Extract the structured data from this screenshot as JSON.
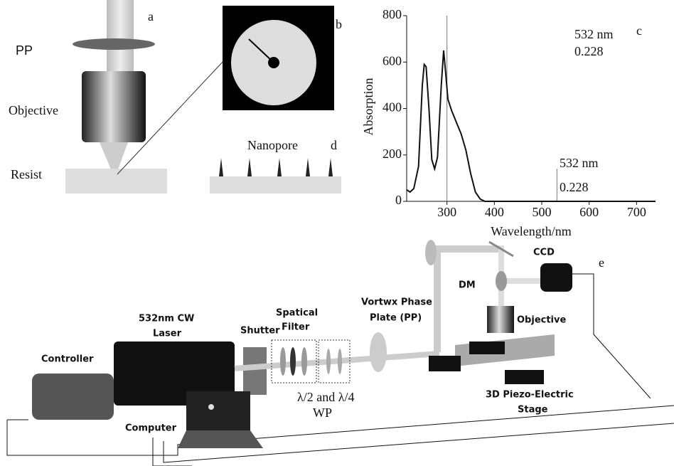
{
  "panel_a": {
    "letter": "a",
    "pp": "PP",
    "objective": "Objective",
    "resist": "Resist"
  },
  "panel_b": {
    "letter": "b"
  },
  "panel_d": {
    "letter": "d",
    "nanopore": "Nanopore"
  },
  "panel_e": {
    "letter": "e",
    "controller": "Controller",
    "laser": [
      "532nm CW",
      "Laser"
    ],
    "shutter": "Shutter",
    "filter": [
      "Spatical",
      "Filter"
    ],
    "phase_plate": [
      "Vortwx Phase",
      "Plate (PP)"
    ],
    "waveplates": [
      "λ/2 and λ/4",
      "WP"
    ],
    "computer": "Computer",
    "dm": "DM",
    "ccd": "CCD",
    "objective": "Objective",
    "stage": [
      "3D Piezo-Electric",
      "Stage"
    ]
  },
  "chart_data": {
    "type": "line",
    "letter": "c",
    "x_label": "Wavelength/nm",
    "y_label": "Absorption",
    "annotation_wavelength": "532 nm",
    "annotation_value": "0.228",
    "x": [
      215,
      222,
      230,
      240,
      248,
      252,
      256,
      262,
      268,
      274,
      280,
      288,
      293,
      297,
      302,
      310,
      320,
      330,
      340,
      350,
      360,
      370,
      380,
      400,
      500,
      600,
      700,
      740
    ],
    "values": [
      50,
      40,
      55,
      150,
      500,
      590,
      580,
      400,
      180,
      140,
      190,
      500,
      650,
      560,
      440,
      390,
      340,
      290,
      220,
      120,
      40,
      10,
      0,
      0,
      0,
      0,
      0,
      0
    ],
    "color": "#111111",
    "vlines": [
      {
        "x": 300,
        "top": 800
      },
      {
        "x": 532,
        "top": 140
      }
    ],
    "xlim": [
      215,
      740
    ],
    "ylim": [
      0,
      800
    ],
    "xticks": [
      300,
      400,
      500,
      600,
      700
    ],
    "yticks": [
      0,
      200,
      400,
      600,
      800
    ]
  }
}
